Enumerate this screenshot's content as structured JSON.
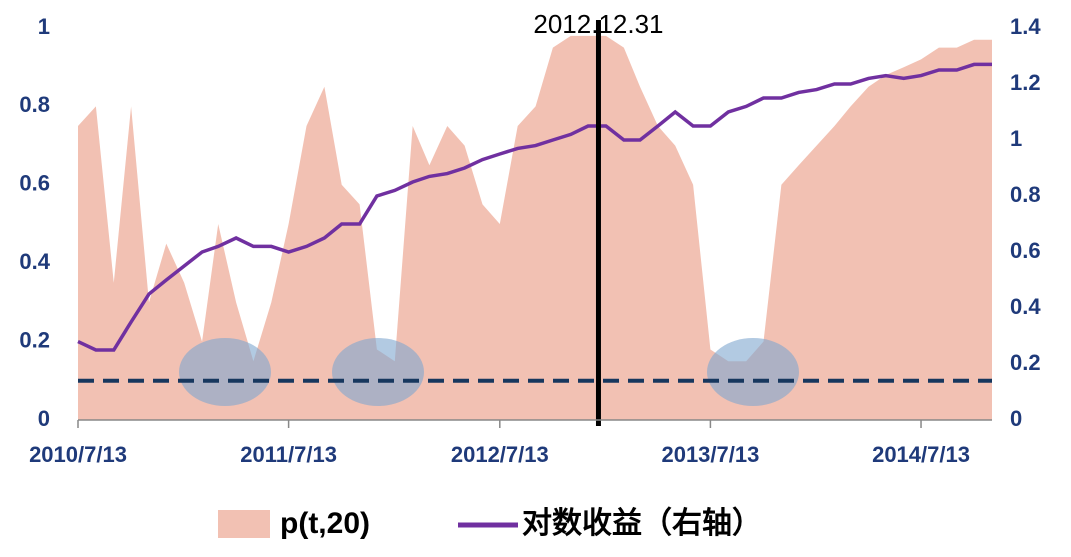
{
  "chart_data": {
    "type": "area-line",
    "x": [
      "2010/7/13",
      "2010/8/13",
      "2010/9/13",
      "2010/10/13",
      "2010/11/13",
      "2010/12/13",
      "2011/1/13",
      "2011/2/13",
      "2011/3/13",
      "2011/4/13",
      "2011/5/13",
      "2011/6/13",
      "2011/7/13",
      "2011/8/13",
      "2011/9/13",
      "2011/10/13",
      "2011/11/13",
      "2011/12/13",
      "2012/1/13",
      "2012/2/13",
      "2012/3/13",
      "2012/4/13",
      "2012/5/13",
      "2012/6/13",
      "2012/7/13",
      "2012/8/13",
      "2012/9/13",
      "2012/10/13",
      "2012/11/13",
      "2012/12/13",
      "2013/1/13",
      "2013/2/13",
      "2013/3/13",
      "2013/4/13",
      "2013/5/13",
      "2013/6/13",
      "2013/7/13",
      "2013/8/13",
      "2013/9/13",
      "2013/10/13",
      "2013/11/13",
      "2013/12/13",
      "2014/1/13",
      "2014/2/13",
      "2014/3/13",
      "2014/4/13",
      "2014/5/13",
      "2014/6/13",
      "2014/7/13",
      "2014/8/13",
      "2014/9/13",
      "2014/10/13",
      "2014/11/13"
    ],
    "series": [
      {
        "name": "p(t,20)",
        "kind": "area",
        "color": "#f2c1b3",
        "values": [
          0.75,
          0.8,
          0.35,
          0.8,
          0.3,
          0.45,
          0.35,
          0.2,
          0.5,
          0.3,
          0.15,
          0.3,
          0.5,
          0.75,
          0.85,
          0.6,
          0.55,
          0.18,
          0.15,
          0.75,
          0.65,
          0.75,
          0.7,
          0.55,
          0.5,
          0.75,
          0.8,
          0.95,
          0.98,
          0.98,
          0.98,
          0.95,
          0.85,
          0.75,
          0.7,
          0.6,
          0.18,
          0.15,
          0.15,
          0.2,
          0.6,
          0.65,
          0.7,
          0.75,
          0.8,
          0.85,
          0.88,
          0.9,
          0.92,
          0.95,
          0.95,
          0.97,
          0.97
        ]
      },
      {
        "name": "对数收益（右轴）",
        "kind": "line",
        "axis": "y2",
        "color": "#7030a0",
        "values": [
          0.28,
          0.25,
          0.25,
          0.35,
          0.45,
          0.5,
          0.55,
          0.6,
          0.62,
          0.65,
          0.62,
          0.62,
          0.6,
          0.62,
          0.65,
          0.7,
          0.7,
          0.8,
          0.82,
          0.85,
          0.87,
          0.88,
          0.9,
          0.93,
          0.95,
          0.97,
          0.98,
          1.0,
          1.02,
          1.05,
          1.05,
          1.0,
          1.0,
          1.05,
          1.1,
          1.05,
          1.05,
          1.1,
          1.12,
          1.15,
          1.15,
          1.17,
          1.18,
          1.2,
          1.2,
          1.22,
          1.23,
          1.22,
          1.23,
          1.25,
          1.25,
          1.27,
          1.27
        ]
      }
    ],
    "xlim": [
      "2010/7/13",
      "2014/11/13"
    ],
    "xticks": [
      "2010/7/13",
      "2011/7/13",
      "2012/7/13",
      "2013/7/13",
      "2014/7/13"
    ],
    "ylim": [
      0,
      1
    ],
    "yticks": [
      0,
      0.2,
      0.4,
      0.6,
      0.8,
      1
    ],
    "y2lim": [
      0,
      1.4
    ],
    "y2ticks": [
      0,
      0.2,
      0.4,
      0.6,
      0.8,
      1,
      1.2,
      1.4
    ],
    "reference_line": {
      "value": 0.1,
      "color": "#17375e"
    },
    "annotation": {
      "x": "2012/12/31",
      "text": "2012.12.31"
    }
  }
}
